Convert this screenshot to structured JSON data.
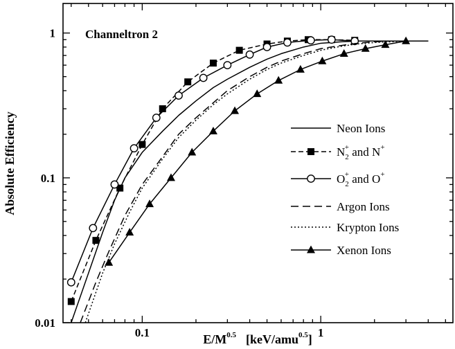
{
  "chart_data": {
    "type": "line",
    "title": "Channeltron 2",
    "xlabel": {
      "base": "E/M",
      "exp": "0.5",
      "units_open": "[keV/amu",
      "units_exp": "0.5",
      "units_close": "]"
    },
    "ylabel": "Absolute Efficiency",
    "xscale": "log",
    "yscale": "log",
    "xlim": [
      0.036,
      5.5
    ],
    "ylim": [
      0.01,
      1.6
    ],
    "x_ticks": [
      {
        "value": 0.1,
        "label": "0.1"
      },
      {
        "value": 1,
        "label": "1"
      }
    ],
    "y_ticks": [
      {
        "value": 0.01,
        "label": "0.01"
      },
      {
        "value": 0.1,
        "label": "0.1"
      },
      {
        "value": 1,
        "label": "1"
      }
    ],
    "legend_position": "center-right",
    "series": [
      {
        "name": "Neon Ions",
        "legend": [
          {
            "t": "Neon Ions"
          }
        ],
        "line": "solid",
        "marker": "none",
        "color": "#000000",
        "x": [
          0.04,
          0.05,
          0.06,
          0.07,
          0.08,
          0.1,
          0.13,
          0.16,
          0.2,
          0.25,
          0.3,
          0.4,
          0.5,
          0.6,
          0.8,
          1.0,
          1.3,
          1.6,
          2.0,
          3.0,
          4.0
        ],
        "y": [
          0.01,
          0.022,
          0.042,
          0.07,
          0.1,
          0.15,
          0.21,
          0.27,
          0.34,
          0.42,
          0.48,
          0.58,
          0.66,
          0.72,
          0.8,
          0.85,
          0.87,
          0.88,
          0.88,
          0.88,
          0.88
        ]
      },
      {
        "name": "N2+ and N+",
        "legend": [
          {
            "t": "N"
          },
          {
            "t": "2",
            "sub": true
          },
          {
            "t": "+",
            "sup": true
          },
          {
            "t": " and N"
          },
          {
            "t": "+",
            "sup": true
          }
        ],
        "line": "dashed",
        "marker": "square-filled",
        "color": "#000000",
        "x": [
          0.04,
          0.055,
          0.075,
          0.1,
          0.13,
          0.18,
          0.25,
          0.35,
          0.5,
          0.65,
          0.85,
          1.15,
          1.55
        ],
        "y": [
          0.014,
          0.037,
          0.085,
          0.17,
          0.3,
          0.46,
          0.62,
          0.76,
          0.84,
          0.88,
          0.9,
          0.9,
          0.89
        ]
      },
      {
        "name": "O2+ and O+",
        "legend": [
          {
            "t": "O"
          },
          {
            "t": "2",
            "sub": true
          },
          {
            "t": "+",
            "sup": true
          },
          {
            "t": " and O"
          },
          {
            "t": "+",
            "sup": true
          }
        ],
        "line": "solid",
        "marker": "circle-open",
        "color": "#000000",
        "x": [
          0.04,
          0.053,
          0.07,
          0.09,
          0.12,
          0.16,
          0.22,
          0.3,
          0.4,
          0.5,
          0.65,
          0.88,
          1.15,
          1.55
        ],
        "y": [
          0.019,
          0.045,
          0.09,
          0.16,
          0.26,
          0.37,
          0.49,
          0.6,
          0.71,
          0.8,
          0.86,
          0.89,
          0.9,
          0.88
        ]
      },
      {
        "name": "Argon Ions",
        "legend": [
          {
            "t": "Argon Ions"
          }
        ],
        "line": "long-dash",
        "marker": "none",
        "color": "#000000",
        "x": [
          0.045,
          0.055,
          0.065,
          0.08,
          0.1,
          0.13,
          0.16,
          0.2,
          0.25,
          0.3,
          0.4,
          0.5,
          0.6,
          0.8,
          1.0,
          1.3,
          1.6,
          2.0,
          2.5,
          3.0,
          4.0
        ],
        "y": [
          0.01,
          0.019,
          0.031,
          0.055,
          0.09,
          0.14,
          0.2,
          0.26,
          0.33,
          0.4,
          0.5,
          0.58,
          0.64,
          0.72,
          0.78,
          0.82,
          0.85,
          0.87,
          0.88,
          0.88,
          0.88
        ]
      },
      {
        "name": "Krypton Ions",
        "legend": [
          {
            "t": "Krypton Ions"
          }
        ],
        "line": "dotted",
        "marker": "none",
        "color": "#000000",
        "x": [
          0.048,
          0.06,
          0.07,
          0.085,
          0.1,
          0.13,
          0.16,
          0.2,
          0.25,
          0.3,
          0.4,
          0.5,
          0.6,
          0.8,
          1.0,
          1.3,
          1.6,
          2.0,
          2.5,
          3.0,
          4.0
        ],
        "y": [
          0.01,
          0.022,
          0.035,
          0.058,
          0.085,
          0.135,
          0.19,
          0.25,
          0.32,
          0.38,
          0.48,
          0.56,
          0.62,
          0.7,
          0.76,
          0.81,
          0.84,
          0.86,
          0.87,
          0.88,
          0.88
        ]
      },
      {
        "name": "Xenon Ions",
        "legend": [
          {
            "t": "Xenon Ions"
          }
        ],
        "line": "solid",
        "marker": "triangle-filled",
        "color": "#000000",
        "x": [
          0.065,
          0.085,
          0.11,
          0.145,
          0.19,
          0.25,
          0.33,
          0.44,
          0.58,
          0.77,
          1.02,
          1.35,
          1.78,
          2.3,
          3.0,
          4.0
        ],
        "y": [
          0.026,
          0.042,
          0.066,
          0.1,
          0.15,
          0.21,
          0.29,
          0.38,
          0.47,
          0.56,
          0.64,
          0.72,
          0.78,
          0.83,
          0.88,
          0.88
        ],
        "marker_x": [
          0.065,
          0.085,
          0.11,
          0.145,
          0.19,
          0.25,
          0.33,
          0.44,
          0.58,
          0.77,
          1.02,
          1.35,
          1.78,
          2.3,
          3.0
        ],
        "marker_y": [
          0.026,
          0.042,
          0.066,
          0.1,
          0.15,
          0.21,
          0.29,
          0.38,
          0.47,
          0.56,
          0.64,
          0.72,
          0.78,
          0.83,
          0.88
        ]
      }
    ]
  }
}
